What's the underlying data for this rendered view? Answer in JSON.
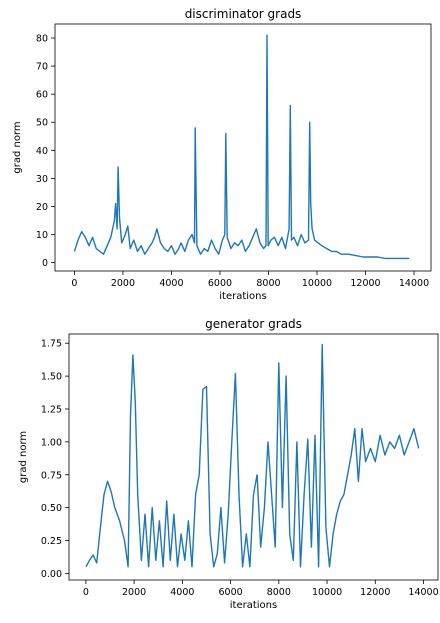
{
  "chart_data": [
    {
      "type": "line",
      "title": "discriminator grads",
      "xlabel": "iterations",
      "ylabel": "grad norm",
      "xlim": [
        -800,
        14700
      ],
      "ylim": [
        -3,
        85
      ],
      "xticks": [
        0,
        2000,
        4000,
        6000,
        8000,
        10000,
        12000,
        14000
      ],
      "yticks": [
        0,
        10,
        20,
        30,
        40,
        50,
        60,
        70,
        80
      ],
      "grid": false,
      "color": "#1f77b4",
      "series": [
        {
          "x": [
            0,
            150,
            300,
            450,
            600,
            750,
            900,
            1050,
            1200,
            1350,
            1500,
            1650,
            1700,
            1760,
            1800,
            1860,
            1950,
            2100,
            2200,
            2300,
            2450,
            2600,
            2750,
            2900,
            3050,
            3200,
            3300,
            3400,
            3550,
            3700,
            3850,
            4000,
            4150,
            4300,
            4400,
            4550,
            4700,
            4850,
            4950,
            4980,
            5050,
            5200,
            5350,
            5500,
            5650,
            5800,
            5950,
            6100,
            6200,
            6240,
            6300,
            6450,
            6600,
            6750,
            6900,
            7050,
            7200,
            7350,
            7500,
            7650,
            7800,
            7900,
            7940,
            7990,
            8100,
            8250,
            8400,
            8550,
            8700,
            8850,
            8900,
            8950,
            9050,
            9200,
            9350,
            9500,
            9650,
            9700,
            9740,
            9800,
            9900,
            10050,
            10200,
            10400,
            10600,
            10800,
            11000,
            11300,
            11600,
            11900,
            12200,
            12500,
            12800,
            13100,
            13400,
            13800
          ],
          "y": [
            4,
            8,
            11,
            9,
            6,
            9,
            5,
            4,
            3,
            6,
            9,
            15,
            21,
            12,
            34,
            16,
            7,
            10,
            13,
            5,
            8,
            4,
            6,
            3,
            5,
            7,
            9,
            12,
            7,
            5,
            4,
            6,
            3,
            5,
            7,
            4,
            8,
            10,
            7,
            48,
            6,
            3,
            5,
            4,
            8,
            5,
            3,
            8,
            10,
            46,
            9,
            5,
            7,
            6,
            8,
            4,
            6,
            9,
            12,
            7,
            5,
            6,
            81,
            6,
            8,
            9,
            6,
            9,
            5,
            12,
            56,
            8,
            9,
            6,
            10,
            7,
            8,
            50,
            21,
            12,
            8,
            7,
            6,
            5,
            4,
            4,
            3,
            3,
            2.5,
            2,
            2,
            2,
            1.5,
            1.5,
            1.5,
            1.5
          ]
        }
      ]
    },
    {
      "type": "line",
      "title": "generator grads",
      "xlabel": "iterations",
      "ylabel": "grad norm",
      "xlim": [
        -700,
        14600
      ],
      "ylim": [
        -0.05,
        1.82
      ],
      "xticks": [
        0,
        2000,
        4000,
        6000,
        8000,
        10000,
        12000,
        14000
      ],
      "yticks": [
        0.0,
        0.25,
        0.5,
        0.75,
        1.0,
        1.25,
        1.5,
        1.75
      ],
      "ytick_labels": [
        "0.00",
        "0.25",
        "0.50",
        "0.75",
        "1.00",
        "1.25",
        "1.50",
        "1.75"
      ],
      "grid": false,
      "color": "#1f77b4",
      "series": [
        {
          "x": [
            0,
            150,
            300,
            450,
            600,
            750,
            900,
            1050,
            1200,
            1400,
            1600,
            1750,
            1850,
            1950,
            2050,
            2150,
            2300,
            2450,
            2600,
            2750,
            2900,
            3050,
            3200,
            3350,
            3500,
            3650,
            3800,
            3950,
            4100,
            4250,
            4400,
            4550,
            4700,
            4850,
            5000,
            5150,
            5300,
            5450,
            5600,
            5750,
            5900,
            6050,
            6200,
            6350,
            6500,
            6650,
            6800,
            6950,
            7100,
            7250,
            7400,
            7550,
            7700,
            7850,
            8000,
            8150,
            8300,
            8450,
            8600,
            8750,
            8900,
            9050,
            9200,
            9350,
            9500,
            9650,
            9800,
            9950,
            10100,
            10250,
            10400,
            10550,
            10700,
            10850,
            11000,
            11150,
            11300,
            11450,
            11600,
            11800,
            12000,
            12200,
            12400,
            12600,
            12800,
            13000,
            13200,
            13400,
            13600,
            13800
          ],
          "y": [
            0.05,
            0.1,
            0.14,
            0.08,
            0.35,
            0.6,
            0.7,
            0.62,
            0.5,
            0.4,
            0.25,
            0.05,
            1.2,
            1.66,
            1.3,
            0.6,
            0.1,
            0.45,
            0.05,
            0.5,
            0.1,
            0.4,
            0.05,
            0.55,
            0.1,
            0.45,
            0.05,
            0.3,
            0.1,
            0.4,
            0.05,
            0.6,
            0.75,
            1.4,
            1.42,
            0.3,
            0.05,
            0.15,
            0.5,
            0.08,
            0.45,
            1.0,
            1.52,
            0.6,
            0.05,
            0.3,
            0.05,
            0.6,
            0.75,
            0.2,
            0.5,
            1.0,
            0.6,
            0.2,
            1.6,
            0.5,
            1.5,
            0.3,
            0.1,
            1.0,
            0.05,
            0.6,
            1.02,
            0.2,
            1.05,
            0.05,
            1.74,
            0.35,
            0.05,
            0.3,
            0.45,
            0.55,
            0.6,
            0.75,
            0.9,
            1.1,
            0.7,
            1.1,
            0.85,
            0.95,
            0.85,
            1.05,
            0.9,
            1.0,
            0.95,
            1.05,
            0.9,
            1.0,
            1.1,
            0.95
          ]
        }
      ]
    }
  ]
}
